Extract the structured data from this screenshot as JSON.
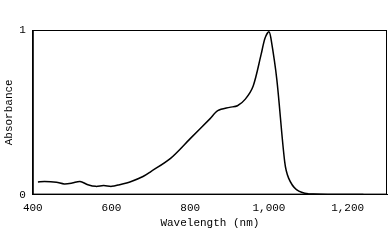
{
  "chart_data": {
    "type": "line",
    "x_label": "Wavelength (nm)",
    "y_label": "Absorbance",
    "x": [
      413,
      430,
      460,
      480,
      500,
      520,
      540,
      560,
      580,
      600,
      620,
      650,
      680,
      700,
      750,
      800,
      850,
      870,
      900,
      920,
      940,
      960,
      980,
      990,
      1000,
      1005,
      1020,
      1040,
      1050,
      1070,
      1100,
      1200,
      1240
    ],
    "values": [
      0.077,
      0.08,
      0.075,
      0.065,
      0.07,
      0.08,
      0.06,
      0.05,
      0.055,
      0.05,
      0.06,
      0.08,
      0.11,
      0.14,
      0.22,
      0.34,
      0.46,
      0.51,
      0.53,
      0.54,
      0.58,
      0.66,
      0.85,
      0.95,
      0.99,
      0.95,
      0.7,
      0.2,
      0.1,
      0.03,
      0.005,
      0,
      0
    ],
    "color": "#000000",
    "xlim": [
      400,
      1300
    ],
    "xticks": [
      400,
      600,
      800,
      1000,
      1200
    ],
    "ylim": [
      0,
      1
    ],
    "yticks": [
      0,
      1
    ],
    "grid": false
  }
}
